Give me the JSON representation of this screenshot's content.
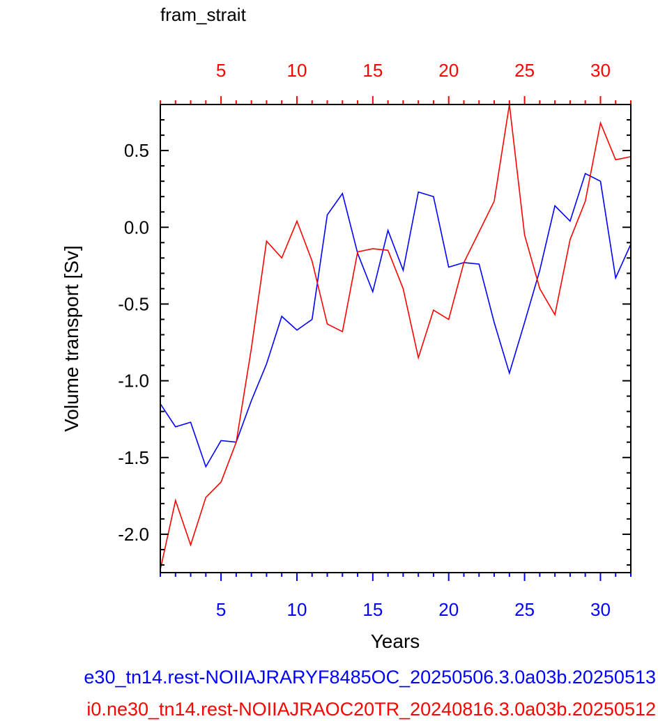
{
  "chart_data": {
    "type": "line",
    "title": "fram_strait",
    "xlabel": "Years",
    "ylabel": "Volume transport [Sv]",
    "xlim": [
      1,
      32
    ],
    "ylim": [
      -2.25,
      0.8
    ],
    "x_ticks": [
      5,
      10,
      15,
      20,
      25,
      30
    ],
    "y_ticks": [
      0.5,
      0.0,
      -0.5,
      -1.0,
      -1.5,
      -2.0
    ],
    "y_tick_labels": [
      "0.5",
      "0.0",
      "-0.5",
      "-1.0",
      "-1.5",
      "-2.0"
    ],
    "top_axis_color": "#ff0000",
    "bottom_axis_color": "#0000ff",
    "series": [
      {
        "name": "e30_tn14.rest-NOIIAJRARYF8485OC_20250506.3.0a03b.20250513",
        "color": "#0000ff",
        "x": [
          1,
          2,
          3,
          4,
          5,
          6,
          7,
          8,
          9,
          10,
          11,
          12,
          13,
          14,
          15,
          16,
          17,
          18,
          19,
          20,
          21,
          22,
          23,
          24,
          25,
          26,
          27,
          28,
          29,
          30,
          31,
          32
        ],
        "values": [
          -1.15,
          -1.3,
          -1.27,
          -1.56,
          -1.39,
          -1.4,
          -1.13,
          -0.89,
          -0.58,
          -0.67,
          -0.6,
          0.08,
          0.22,
          -0.17,
          -0.42,
          -0.02,
          -0.28,
          0.23,
          0.2,
          -0.26,
          -0.23,
          -0.24,
          -0.62,
          -0.95,
          -0.62,
          -0.28,
          0.14,
          0.04,
          0.35,
          0.3,
          -0.33,
          -0.11
        ]
      },
      {
        "name": "i0.ne30_tn14.rest-NOIIAJRAOC20TR_20240816.3.0a03b.20250512",
        "color": "#ff0000",
        "x": [
          1,
          2,
          3,
          4,
          5,
          6,
          7,
          8,
          9,
          10,
          11,
          12,
          13,
          14,
          15,
          16,
          17,
          18,
          19,
          20,
          21,
          22,
          23,
          24,
          25,
          26,
          27,
          28,
          29,
          30,
          31,
          32
        ],
        "values": [
          -2.23,
          -1.78,
          -2.07,
          -1.76,
          -1.66,
          -1.4,
          -0.79,
          -0.09,
          -0.2,
          0.04,
          -0.22,
          -0.63,
          -0.68,
          -0.16,
          -0.14,
          -0.15,
          -0.4,
          -0.85,
          -0.54,
          -0.6,
          -0.23,
          -0.03,
          0.17,
          0.8,
          -0.05,
          -0.4,
          -0.57,
          -0.08,
          0.17,
          0.68,
          0.44,
          0.46
        ]
      }
    ]
  }
}
